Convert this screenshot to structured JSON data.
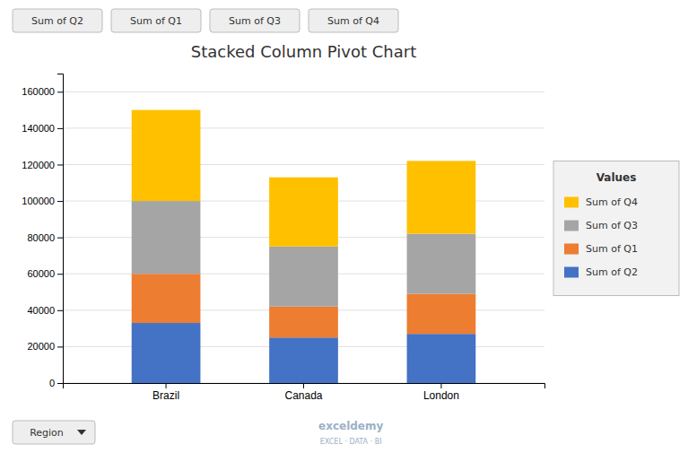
{
  "chart_data": {
    "type": "bar",
    "stacked": true,
    "title": "Stacked Column Pivot Chart",
    "categories": [
      "Brazil",
      "Canada",
      "London"
    ],
    "series": [
      {
        "name": "Sum of Q2",
        "color": "#4472C4",
        "values": [
          33000,
          25000,
          27000
        ]
      },
      {
        "name": "Sum of Q1",
        "color": "#ED7D31",
        "values": [
          27000,
          17000,
          22000
        ]
      },
      {
        "name": "Sum of Q3",
        "color": "#A5A5A5",
        "values": [
          40000,
          33000,
          33000
        ]
      },
      {
        "name": "Sum of Q4",
        "color": "#FFC000",
        "values": [
          50000,
          38000,
          40000
        ]
      }
    ],
    "ylim": [
      0,
      170000
    ],
    "yticks": [
      0,
      20000,
      40000,
      60000,
      80000,
      100000,
      120000,
      140000,
      160000
    ],
    "grid": true,
    "legend": "right",
    "legend_title": "Values",
    "annotations": [
      "Region",
      "exceldemy",
      "EXCEL  ·  DATA  ·  BI"
    ]
  }
}
